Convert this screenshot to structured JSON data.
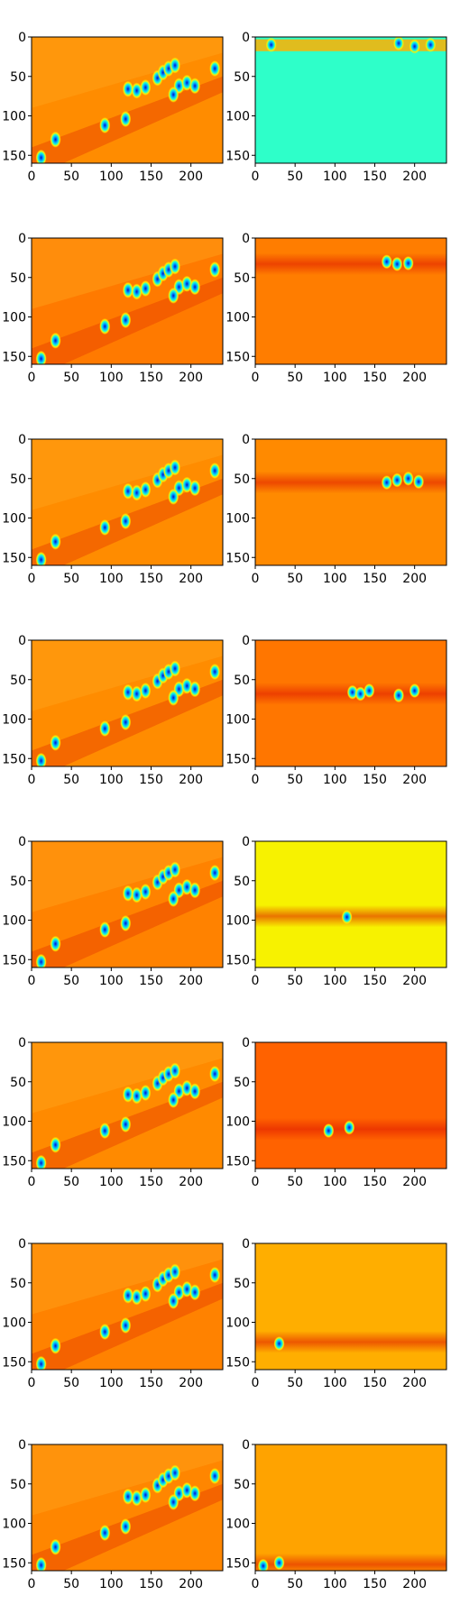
{
  "chart_data": {
    "type": "heatmap",
    "colormap": "jet",
    "rows": 8,
    "cols": 2,
    "image_extent": {
      "x": [
        0,
        240
      ],
      "y": [
        0,
        160
      ]
    },
    "x_ticks": [
      0,
      50,
      100,
      150,
      200
    ],
    "y_ticks": [
      0,
      50,
      100,
      150
    ],
    "x_tick_labels": [
      "0",
      "50",
      "100",
      "150",
      "200"
    ],
    "y_tick_labels": [
      "0",
      "50",
      "100",
      "150"
    ],
    "row_focus_y": [
      10,
      33,
      55,
      68,
      95,
      110,
      125,
      152
    ],
    "left_backgrounds": [
      "#ff8c00",
      "#ff7a00",
      "#ff8c00",
      "#ff8c00",
      "#ff8200",
      "#ff8a00",
      "#ff8200",
      "#ff8600"
    ],
    "right_backgrounds": [
      "#2effc9",
      "#ff7d00",
      "#ff8a00",
      "#ff7600",
      "#f7f200",
      "#ff6200",
      "#ffae00",
      "#ffa300"
    ],
    "left_hotspots": [
      [
        92,
        112
      ],
      [
        118,
        104
      ],
      [
        121,
        66
      ],
      [
        132,
        68
      ],
      [
        143,
        64
      ],
      [
        158,
        52
      ],
      [
        165,
        45
      ],
      [
        172,
        40
      ],
      [
        180,
        36
      ],
      [
        185,
        62
      ],
      [
        195,
        58
      ],
      [
        205,
        62
      ],
      [
        178,
        73
      ],
      [
        30,
        130
      ],
      [
        12,
        153
      ],
      [
        230,
        40
      ]
    ],
    "right_features": [
      {
        "y": 10,
        "hotspots": [
          [
            20,
            10
          ],
          [
            180,
            8
          ],
          [
            200,
            12
          ],
          [
            220,
            10
          ]
        ]
      },
      {
        "y": 33,
        "hotspots": [
          [
            165,
            30
          ],
          [
            178,
            33
          ],
          [
            192,
            32
          ]
        ]
      },
      {
        "y": 55,
        "hotspots": [
          [
            165,
            55
          ],
          [
            178,
            52
          ],
          [
            192,
            50
          ],
          [
            205,
            54
          ]
        ]
      },
      {
        "y": 68,
        "hotspots": [
          [
            122,
            66
          ],
          [
            132,
            68
          ],
          [
            143,
            64
          ],
          [
            180,
            70
          ],
          [
            200,
            64
          ]
        ]
      },
      {
        "y": 95,
        "hotspots": [
          [
            115,
            96
          ]
        ]
      },
      {
        "y": 110,
        "hotspots": [
          [
            92,
            112
          ],
          [
            118,
            108
          ]
        ]
      },
      {
        "y": 125,
        "hotspots": [
          [
            30,
            127
          ]
        ]
      },
      {
        "y": 152,
        "hotspots": [
          [
            10,
            154
          ],
          [
            30,
            150
          ]
        ]
      }
    ]
  }
}
